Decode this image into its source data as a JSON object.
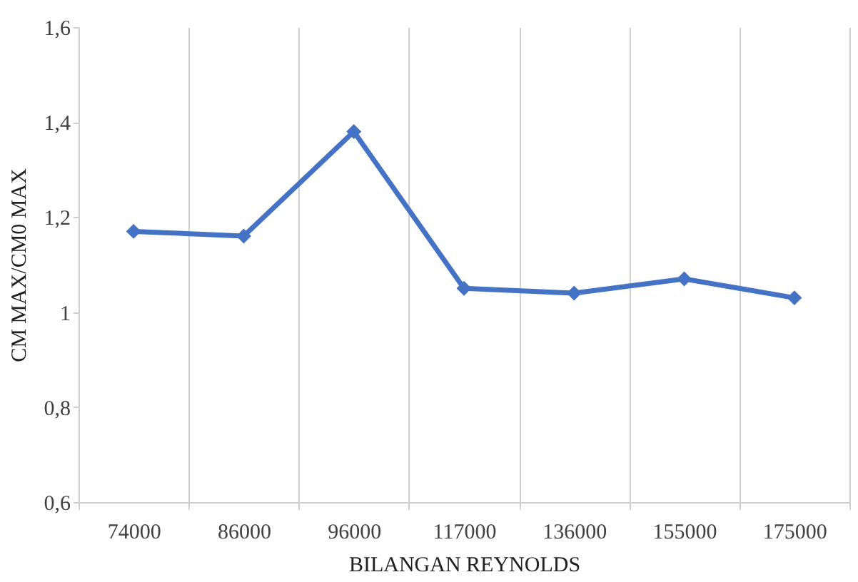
{
  "chart_data": {
    "type": "line",
    "xlabel": "BILANGAN REYNOLDS",
    "ylabel": "CM MAX/CM0 MAX",
    "categories": [
      "74000",
      "86000",
      "96000",
      "117000",
      "136000",
      "155000",
      "175000"
    ],
    "series": [
      {
        "color": "#4472c4",
        "values": [
          1.17,
          1.16,
          1.38,
          1.05,
          1.04,
          1.07,
          1.03
        ]
      }
    ],
    "ylim": [
      0.6,
      1.6
    ],
    "yticks": [
      {
        "value": 0.6,
        "label": "0,6"
      },
      {
        "value": 0.8,
        "label": "0,8"
      },
      1,
      {
        "value": 1.2,
        "label": "1,2"
      },
      {
        "value": 1.4,
        "label": "1,4"
      },
      {
        "value": 1.6,
        "label": "1,6"
      }
    ],
    "grid": "x",
    "marker": "diamond",
    "line_style": "solid",
    "legend": false
  }
}
